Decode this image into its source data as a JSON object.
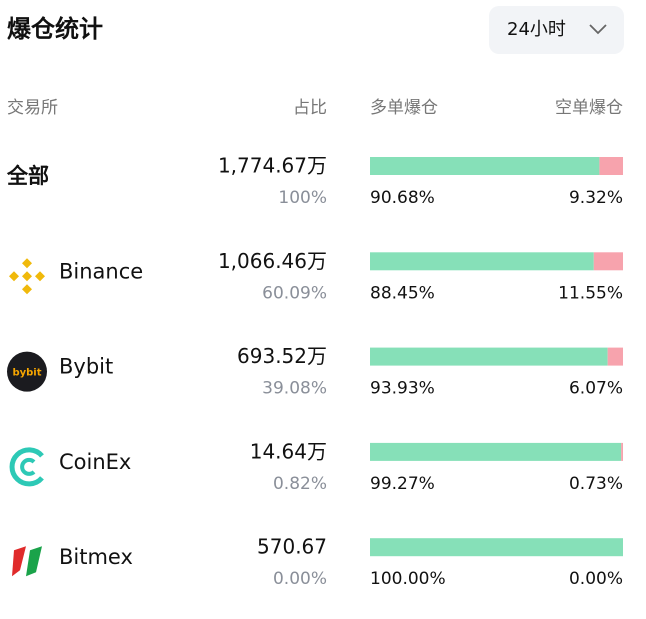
{
  "header": {
    "title": "爆仓统计",
    "period": "24小时"
  },
  "columns": {
    "exchange": "交易所",
    "share": "占比",
    "long": "多单爆仓",
    "short": "空单爆仓"
  },
  "rows": [
    {
      "name": "全部",
      "amount": "1,774.67万",
      "share": "100%",
      "long": {
        "value": 90.68,
        "label": "90.68%"
      },
      "short": {
        "value": 9.32,
        "label": "9.32%"
      }
    },
    {
      "name": "Binance",
      "amount": "1,066.46万",
      "share": "60.09%",
      "long": {
        "value": 88.45,
        "label": "88.45%"
      },
      "short": {
        "value": 11.55,
        "label": "11.55%"
      }
    },
    {
      "name": "Bybit",
      "logo_text": "bybit",
      "amount": "693.52万",
      "share": "39.08%",
      "long": {
        "value": 93.93,
        "label": "93.93%"
      },
      "short": {
        "value": 6.07,
        "label": "6.07%"
      }
    },
    {
      "name": "CoinEx",
      "amount": "14.64万",
      "share": "0.82%",
      "long": {
        "value": 99.27,
        "label": "99.27%"
      },
      "short": {
        "value": 0.73,
        "label": "0.73%"
      }
    },
    {
      "name": "Bitmex",
      "amount": "570.67",
      "share": "0.00%",
      "long": {
        "value": 100,
        "label": "100.00%"
      },
      "short": {
        "value": 0,
        "label": "0.00%"
      }
    }
  ]
}
